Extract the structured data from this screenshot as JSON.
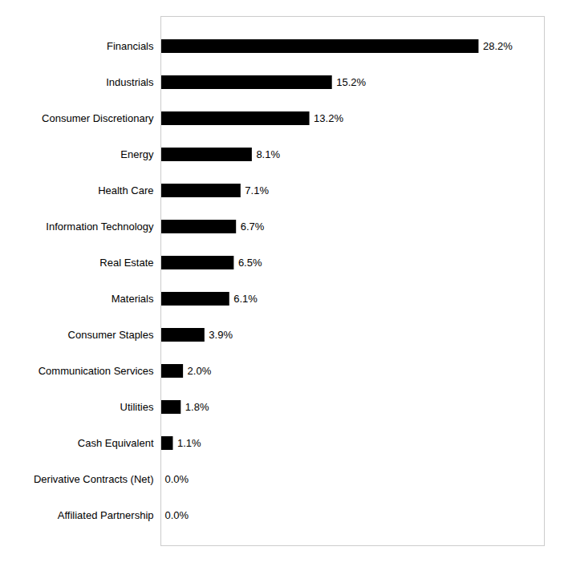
{
  "chart_data": {
    "type": "bar",
    "orientation": "horizontal",
    "categories": [
      "Affiliated Partnership",
      "Derivative Contracts (Net)",
      "Cash Equivalent",
      "Utilities",
      "Communication Services",
      "Consumer Staples",
      "Materials",
      "Real Estate",
      "Information Technology",
      "Health Care",
      "Energy",
      "Consumer Discretionary",
      "Industrials",
      "Financials"
    ],
    "values": [
      0.0,
      0.0,
      1.1,
      1.8,
      2.0,
      3.9,
      6.1,
      6.5,
      6.7,
      7.1,
      8.1,
      13.2,
      15.2,
      28.2
    ],
    "value_labels": [
      "0.0%",
      "0.0%",
      "1.1%",
      "1.8%",
      "2.0%",
      "3.9%",
      "6.1%",
      "6.5%",
      "6.7%",
      "7.1%",
      "8.1%",
      "13.2%",
      "15.2%",
      "28.2%"
    ],
    "color": "#000000",
    "xlim": [
      0,
      34
    ],
    "data_labels": true,
    "tick_labels": "y"
  }
}
